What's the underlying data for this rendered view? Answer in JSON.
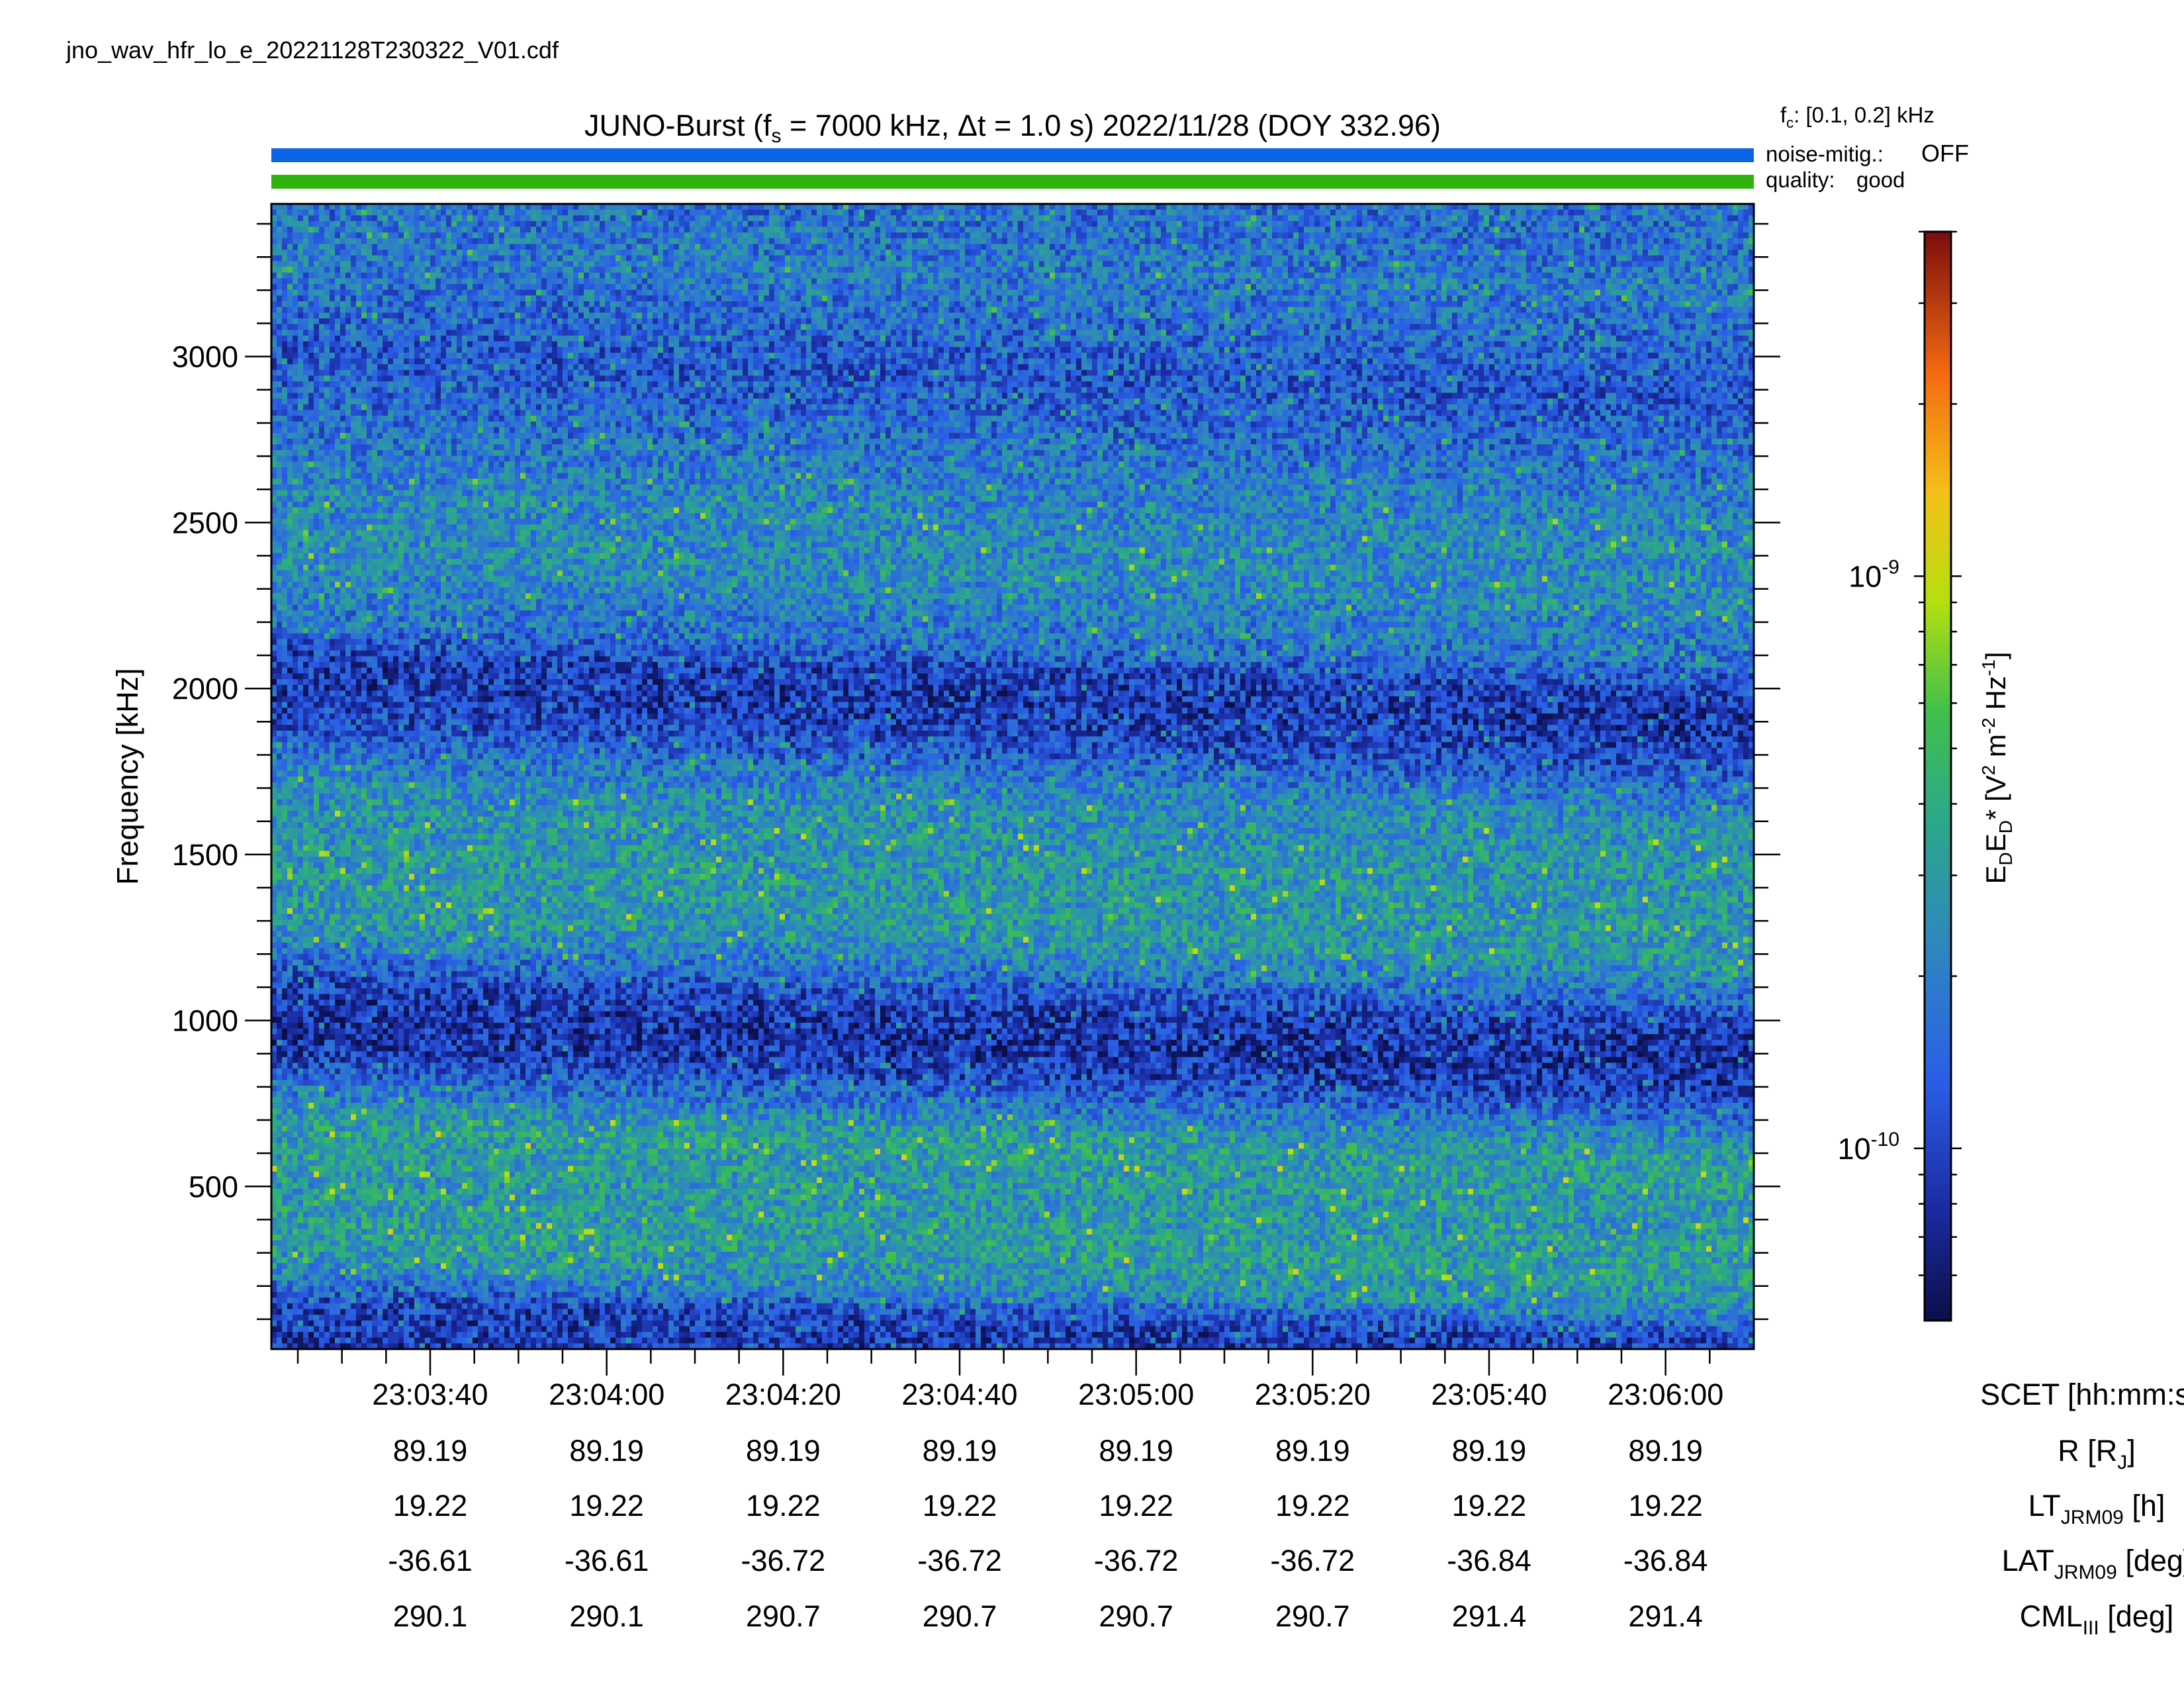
{
  "filename": "jno_wav_hfr_lo_e_20221128T230322_V01.cdf",
  "header": {
    "mission": "JUNO-Burst",
    "fs_prefix": "f",
    "fs_sub": "s",
    "fs_value": " = 7000 kHz, Δt = 1.0 s)",
    "date": "2022/11/28 (DOY 332.96)",
    "fc_label": "f",
    "fc_sub": "c",
    "fc_value": ": [0.1, 0.2] kHz",
    "noise_label": "noise-mitig.:",
    "noise_value": "OFF",
    "quality_label": "quality:",
    "quality_value": "good"
  },
  "colors": {
    "noise_bar": "#0b63e8",
    "quality_bar": "#2fb30f",
    "noise_text": "#1466e6",
    "quality_text": "#3fb21a"
  },
  "chart_data": {
    "type": "heatmap",
    "ylabel": "Frequency [kHz]",
    "ylim": [
      10,
      3460
    ],
    "yticks": [
      500,
      1000,
      1500,
      2000,
      2500,
      3000
    ],
    "ytick_labels": [
      "500",
      "1000",
      "1500",
      "2000",
      "2500",
      "3000"
    ],
    "y_minor_step": 100,
    "x_start": "23:03:22",
    "x_end": "23:06:10",
    "x_minor_step_s": 5,
    "xticks": [
      "23:03:40",
      "23:04:00",
      "23:04:20",
      "23:04:40",
      "23:05:00",
      "23:05:20",
      "23:05:40",
      "23:06:00"
    ],
    "rows": [
      {
        "label_main": "SCET [hh:mm:ss]",
        "label_sub": "",
        "label_tail": "",
        "values": [
          "23:03:40",
          "23:04:00",
          "23:04:20",
          "23:04:40",
          "23:05:00",
          "23:05:20",
          "23:05:40",
          "23:06:00"
        ]
      },
      {
        "label_main": "R [R",
        "label_sub": "J",
        "label_tail": "]",
        "values": [
          "89.19",
          "89.19",
          "89.19",
          "89.19",
          "89.19",
          "89.19",
          "89.19",
          "89.19"
        ]
      },
      {
        "label_main": "LT",
        "label_sub": "JRM09",
        "label_tail": " [h]",
        "values": [
          "19.22",
          "19.22",
          "19.22",
          "19.22",
          "19.22",
          "19.22",
          "19.22",
          "19.22"
        ]
      },
      {
        "label_main": "LAT",
        "label_sub": "JRM09",
        "label_tail": " [deg]",
        "values": [
          "-36.61",
          "-36.61",
          "-36.72",
          "-36.72",
          "-36.72",
          "-36.72",
          "-36.84",
          "-36.84"
        ]
      },
      {
        "label_main": "CML",
        "label_sub": "III",
        "label_tail": " [deg]",
        "values": [
          "290.1",
          "290.1",
          "290.7",
          "290.7",
          "290.7",
          "290.7",
          "291.4",
          "291.4"
        ]
      }
    ],
    "colorbar": {
      "label_parts": [
        "E",
        "D",
        "E",
        "D",
        "*  [V",
        "2",
        " m",
        "-2",
        " Hz",
        "-1",
        "]"
      ],
      "log_scale": true,
      "range": [
        5e-11,
        4e-09
      ],
      "ticks": [
        {
          "base": "10",
          "exp": "-9",
          "value": 1e-09
        },
        {
          "base": "10",
          "exp": "-10",
          "value": 1e-10
        }
      ]
    },
    "intensity_profile": {
      "freq_kHz": [
        10,
        150,
        250,
        350,
        500,
        700,
        800,
        900,
        1000,
        1100,
        1200,
        1300,
        1500,
        1700,
        1800,
        1900,
        2000,
        2100,
        2200,
        2400,
        2600,
        3000,
        3300,
        3460
      ],
      "mean_log10": [
        -10.05,
        -10.0,
        -9.62,
        -9.5,
        -9.55,
        -9.5,
        -9.75,
        -10.0,
        -10.1,
        -10.0,
        -9.75,
        -9.55,
        -9.55,
        -9.6,
        -9.75,
        -9.95,
        -10.05,
        -10.0,
        -9.75,
        -9.62,
        -9.65,
        -9.9,
        -9.72,
        -9.78
      ]
    }
  }
}
